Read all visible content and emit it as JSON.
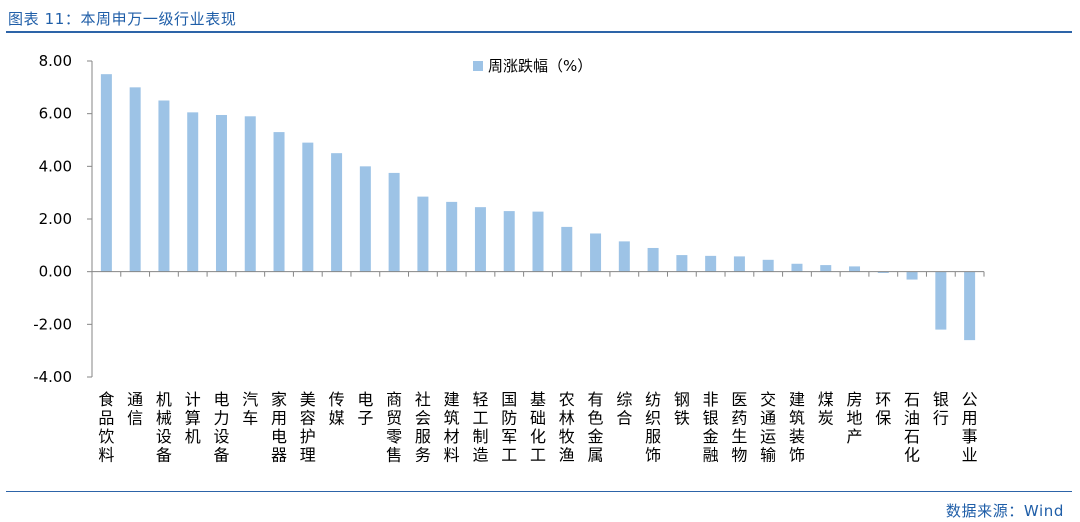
{
  "header": {
    "title": "图表 11：本周申万一级行业表现"
  },
  "footer": {
    "source": "数据来源：Wind"
  },
  "colors": {
    "bar": "#9dc3e6",
    "axis": "#868686",
    "rule": "#2d64a8",
    "text_blue": "#1f5ea8"
  },
  "chart_data": {
    "type": "bar",
    "legend": "周涨跌幅（%）",
    "legend_position": "top-center",
    "grid": false,
    "ylim": [
      -4,
      8
    ],
    "yticks": [
      -4,
      -2,
      0,
      2,
      4,
      6,
      8
    ],
    "ytick_labels": [
      "-4.00",
      "-2.00",
      "0.00",
      "2.00",
      "4.00",
      "6.00",
      "8.00"
    ],
    "categories": [
      "食品饮料",
      "通信",
      "机械设备",
      "计算机",
      "电力设备",
      "汽车",
      "家用电器",
      "美容护理",
      "传媒",
      "电子",
      "商贸零售",
      "社会服务",
      "建筑材料",
      "轻工制造",
      "国防军工",
      "基础化工",
      "农林牧渔",
      "有色金属",
      "综合",
      "纺织服饰",
      "钢铁",
      "非银金融",
      "医药生物",
      "交通运输",
      "建筑装饰",
      "煤炭",
      "房地产",
      "环保",
      "石油石化",
      "银行",
      "公用事业"
    ],
    "series": [
      {
        "name": "周涨跌幅（%）",
        "values": [
          7.5,
          7.0,
          6.5,
          6.05,
          5.95,
          5.9,
          5.3,
          4.9,
          4.5,
          4.0,
          3.75,
          2.85,
          2.65,
          2.45,
          2.3,
          2.28,
          1.7,
          1.45,
          1.15,
          0.9,
          0.63,
          0.6,
          0.58,
          0.45,
          0.3,
          0.25,
          0.2,
          -0.05,
          -0.3,
          -2.2,
          -2.6
        ]
      }
    ]
  }
}
